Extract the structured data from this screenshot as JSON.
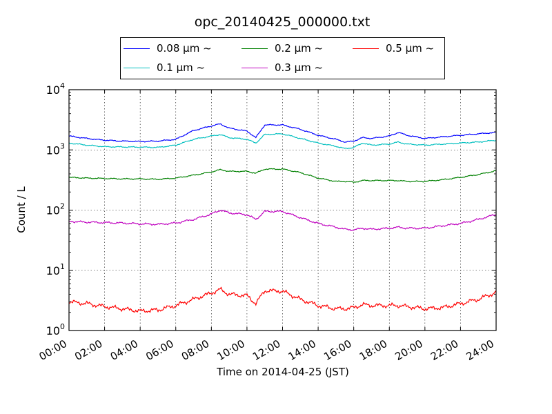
{
  "chart_data": {
    "type": "line",
    "title": "opc_20140425_000000.txt",
    "xlabel": "Time on 2014-04-25 (JST)",
    "ylabel": "Count / L",
    "xlim": [
      0,
      24
    ],
    "ylim": [
      1,
      10000
    ],
    "yscale": "log",
    "grid": true,
    "legend_position": "top-center",
    "x_ticks": [
      "00:00",
      "02:00",
      "04:00",
      "06:00",
      "08:00",
      "10:00",
      "12:00",
      "14:00",
      "16:00",
      "18:00",
      "20:00",
      "22:00",
      "24:00"
    ],
    "y_tick_exponents": [
      "0",
      "1",
      "2",
      "3",
      "4"
    ],
    "y_tick_base": "10",
    "x_hours": [
      0,
      1,
      2,
      3,
      4,
      5,
      6,
      7,
      8,
      8.5,
      9,
      10,
      10.5,
      11,
      12,
      13,
      14,
      15,
      15.5,
      16,
      16.5,
      17,
      18,
      18.5,
      19,
      20,
      21,
      22,
      23,
      24
    ],
    "series": [
      {
        "name": "0.08 μm ~",
        "color": "#0000ff",
        "values": [
          1700,
          1550,
          1450,
          1400,
          1380,
          1400,
          1500,
          2100,
          2500,
          2700,
          2300,
          2050,
          1600,
          2600,
          2600,
          2200,
          1750,
          1500,
          1350,
          1400,
          1600,
          1550,
          1700,
          1950,
          1750,
          1550,
          1650,
          1750,
          1850,
          1950
        ]
      },
      {
        "name": "0.1 μm ~",
        "color": "#00bfbf",
        "values": [
          1300,
          1200,
          1130,
          1120,
          1110,
          1100,
          1200,
          1500,
          1700,
          1800,
          1600,
          1500,
          1300,
          1800,
          1850,
          1550,
          1300,
          1150,
          1050,
          1100,
          1300,
          1200,
          1250,
          1350,
          1250,
          1200,
          1250,
          1300,
          1350,
          1450
        ]
      },
      {
        "name": "0.2 μm ~",
        "color": "#008000",
        "values": [
          350,
          340,
          335,
          330,
          330,
          325,
          340,
          380,
          430,
          470,
          440,
          440,
          410,
          480,
          480,
          420,
          340,
          300,
          300,
          290,
          310,
          310,
          310,
          310,
          300,
          300,
          320,
          350,
          390,
          450
        ]
      },
      {
        "name": "0.3 μm ~",
        "color": "#bf00bf",
        "values": [
          65,
          63,
          62,
          61,
          59,
          58,
          61,
          70,
          86,
          100,
          90,
          84,
          70,
          95,
          95,
          75,
          60,
          52,
          48,
          47,
          50,
          48,
          50,
          52,
          50,
          50,
          55,
          60,
          70,
          85
        ]
      },
      {
        "name": "0.5 μm ~",
        "color": "#ff0000",
        "values": [
          3.0,
          2.8,
          2.5,
          2.3,
          2.1,
          2.2,
          2.6,
          3.3,
          4.2,
          4.8,
          4.0,
          3.8,
          2.8,
          4.6,
          4.5,
          3.3,
          2.6,
          2.3,
          2.3,
          2.4,
          2.7,
          2.6,
          2.6,
          2.6,
          2.5,
          2.3,
          2.4,
          2.8,
          3.3,
          4.3
        ]
      }
    ]
  }
}
